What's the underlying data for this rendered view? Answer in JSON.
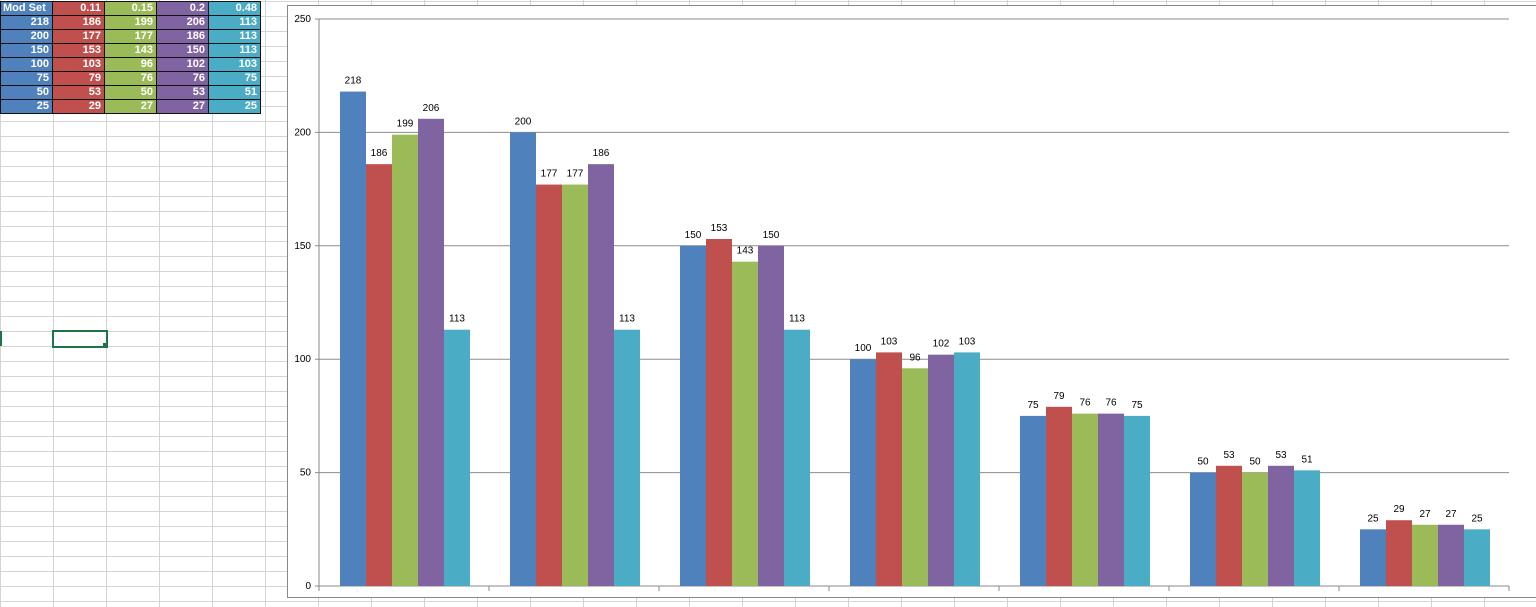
{
  "sheet": {
    "headers": [
      "Mod Set",
      "0.11",
      "0.15",
      "0.2",
      "0.48"
    ],
    "rows": [
      [
        "218",
        "186",
        "199",
        "206",
        "113"
      ],
      [
        "200",
        "177",
        "177",
        "186",
        "113"
      ],
      [
        "150",
        "153",
        "143",
        "150",
        "113"
      ],
      [
        "100",
        "103",
        "96",
        "102",
        "103"
      ],
      [
        "75",
        "79",
        "76",
        "76",
        "75"
      ],
      [
        "50",
        "53",
        "50",
        "53",
        "51"
      ],
      [
        "25",
        "29",
        "27",
        "27",
        "25"
      ]
    ],
    "selected_cell": "B23"
  },
  "chart_data": {
    "type": "bar",
    "categories": [
      "",
      "",
      "",
      "",
      "",
      "",
      ""
    ],
    "series": [
      {
        "values": [
          218,
          200,
          150,
          100,
          75,
          50,
          25
        ],
        "color": "#4f81bd"
      },
      {
        "values": [
          186,
          177,
          153,
          103,
          79,
          53,
          29
        ],
        "color": "#c0504d"
      },
      {
        "values": [
          199,
          177,
          143,
          96,
          76,
          50,
          27
        ],
        "color": "#9bbb59"
      },
      {
        "values": [
          206,
          186,
          150,
          102,
          76,
          53,
          27
        ],
        "color": "#8064a2"
      },
      {
        "values": [
          113,
          113,
          113,
          103,
          75,
          51,
          25
        ],
        "color": "#4bacc6"
      }
    ],
    "ylim": [
      0,
      250
    ],
    "yticks": [
      "0",
      "50",
      "100",
      "150",
      "200",
      "250"
    ],
    "grid": true,
    "data_labels": true,
    "legend": "none",
    "title": "",
    "xlabel": "",
    "ylabel": ""
  }
}
